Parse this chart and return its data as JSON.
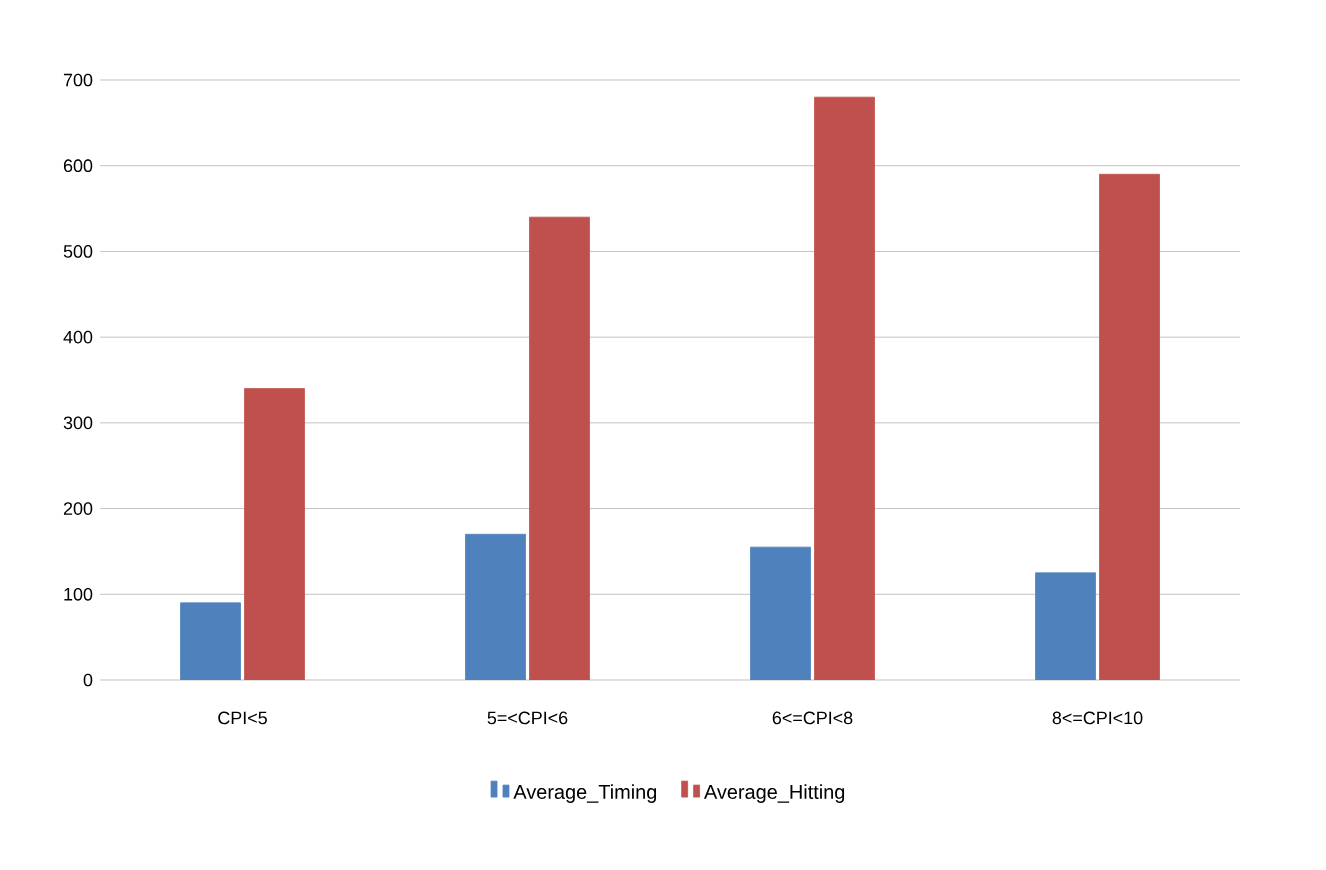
{
  "chart_data": {
    "type": "bar",
    "categories": [
      "CPI<5",
      "5=<CPI<6",
      "6<=CPI<8",
      "8<=CPI<10"
    ],
    "series": [
      {
        "name": "Average_Timing",
        "color": "#4f81bd",
        "values": [
          90,
          170,
          155,
          125
        ]
      },
      {
        "name": "Average_Hitting",
        "color": "#c0504d",
        "values": [
          340,
          540,
          680,
          590
        ]
      }
    ],
    "ylim": [
      0,
      700
    ],
    "yticks": [
      0,
      100,
      200,
      300,
      400,
      500,
      600,
      700
    ],
    "grid": "y",
    "legend": "bottom"
  }
}
